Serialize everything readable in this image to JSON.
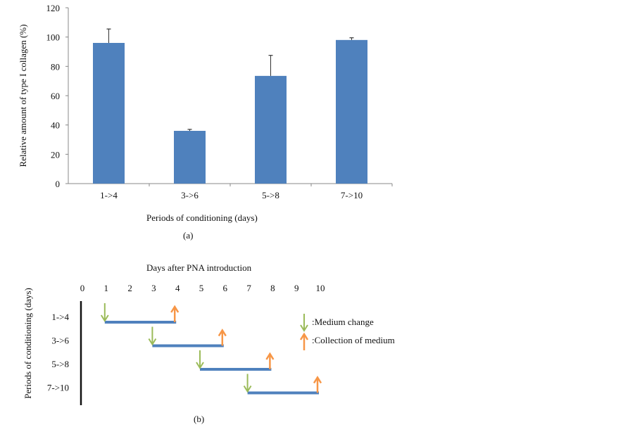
{
  "chart_data": [
    {
      "type": "bar",
      "panel_label": "(a)",
      "title": "",
      "xlabel": "Periods of conditioning (days)",
      "ylabel": "Relative amount of type I collagen (%)",
      "categories": [
        "1->4",
        "3->6",
        "5->8",
        "7->10"
      ],
      "values": [
        96,
        36,
        73.5,
        98
      ],
      "error": [
        9.5,
        1,
        14,
        1.5
      ],
      "ylim": [
        0,
        120
      ],
      "yticks": [
        0,
        20,
        40,
        60,
        80,
        100,
        120
      ],
      "grid": false,
      "colors": {
        "bar": "#4f81bd"
      }
    },
    {
      "type": "timeline",
      "panel_label": "(b)",
      "title": "Days after PNA introduction",
      "ylabel": "Periods of conditioning (days)",
      "xticks": [
        0,
        1,
        2,
        3,
        4,
        5,
        6,
        7,
        8,
        9,
        10
      ],
      "rows": [
        {
          "label": "1->4",
          "start": 1,
          "end": 4
        },
        {
          "label": "3->6",
          "start": 3,
          "end": 6
        },
        {
          "label": "5->8",
          "start": 5,
          "end": 8
        },
        {
          "label": "7->10",
          "start": 7,
          "end": 10
        }
      ],
      "legend": [
        {
          "label": ":Medium change",
          "icon": "green-down-arrow",
          "color": "#9bbb59"
        },
        {
          "label": ":Collection of medium",
          "icon": "orange-up-arrow",
          "color": "#f79646"
        }
      ],
      "colors": {
        "bar": "#4f81bd"
      }
    }
  ]
}
